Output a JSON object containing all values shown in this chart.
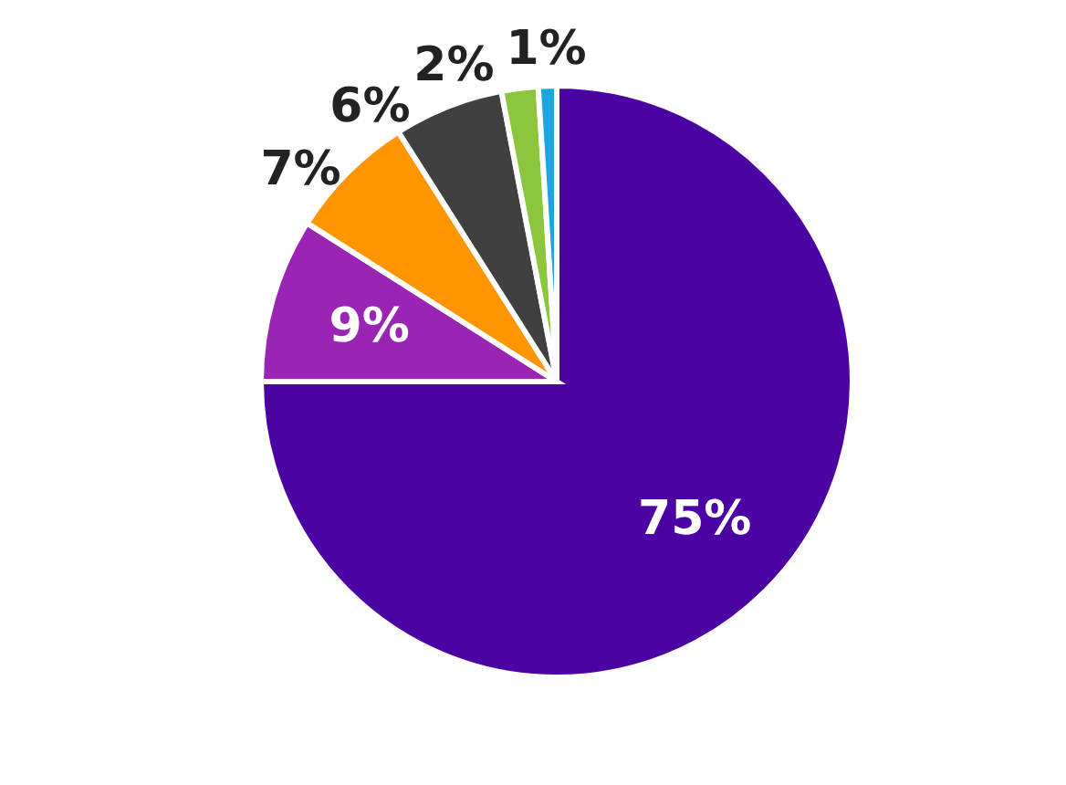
{
  "chart_data": {
    "type": "pie",
    "categories": [
      null,
      null,
      null,
      null,
      null,
      null
    ],
    "values": [
      75,
      9,
      7,
      6,
      2,
      1
    ],
    "value_labels": [
      "75%",
      "9%",
      "7%",
      "6%",
      "2%",
      "1%"
    ],
    "colors": [
      "#4b03a3",
      "#9a25b5",
      "#ff9500",
      "#404041",
      "#8cc63f",
      "#1ba6e0"
    ]
  }
}
